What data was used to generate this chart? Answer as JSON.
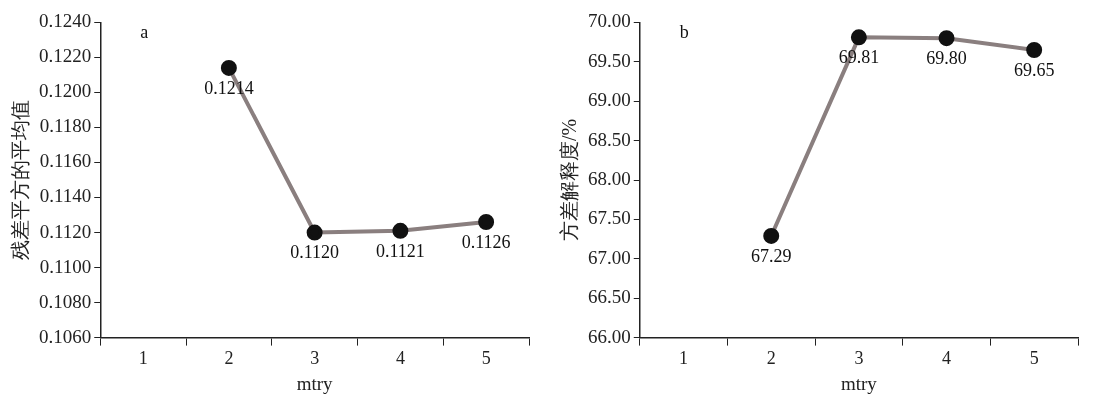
{
  "chart_data": [
    {
      "type": "line",
      "xlabel": "mtry",
      "ylabel": "残差平方的平均值",
      "categories": [
        "1",
        "2",
        "3",
        "4",
        "5"
      ],
      "ylim": [
        0.106,
        0.124
      ],
      "yticks": [
        {
          "value": 0.106,
          "label": "0.1060"
        },
        {
          "value": 0.108,
          "label": "0.1080"
        },
        {
          "value": 0.11,
          "label": "0.1100"
        },
        {
          "value": 0.112,
          "label": "0.1120"
        },
        {
          "value": 0.114,
          "label": "0.1140"
        },
        {
          "value": 0.116,
          "label": "0.1160"
        },
        {
          "value": 0.118,
          "label": "0.1180"
        },
        {
          "value": 0.12,
          "label": "0.1200"
        },
        {
          "value": 0.122,
          "label": "0.1220"
        },
        {
          "value": 0.124,
          "label": "0.1240"
        }
      ],
      "grid": false,
      "legend": false,
      "marker": "circle",
      "line_style": "solid",
      "annotations": [
        "a"
      ],
      "series": [
        {
          "color": "#8a7f7f",
          "values": [
            null,
            0.1214,
            0.112,
            0.1121,
            0.1126
          ],
          "value_labels": [
            null,
            "0.1214",
            "0.1120",
            "0.1121",
            "0.1126"
          ]
        }
      ]
    },
    {
      "type": "line",
      "xlabel": "mtry",
      "ylabel": "方差解释度/%",
      "categories": [
        "1",
        "2",
        "3",
        "4",
        "5"
      ],
      "ylim": [
        66,
        70
      ],
      "yticks": [
        {
          "value": 66,
          "label": "66.00"
        },
        {
          "value": 66.5,
          "label": "66.50"
        },
        {
          "value": 67,
          "label": "67.00"
        },
        {
          "value": 67.5,
          "label": "67.50"
        },
        {
          "value": 68,
          "label": "68.00"
        },
        {
          "value": 68.5,
          "label": "68.50"
        },
        {
          "value": 69,
          "label": "69.00"
        },
        {
          "value": 69.5,
          "label": "69.50"
        },
        {
          "value": 70,
          "label": "70.00"
        }
      ],
      "grid": false,
      "legend": false,
      "marker": "circle",
      "line_style": "solid",
      "annotations": [
        "b"
      ],
      "series": [
        {
          "color": "#8a7f7f",
          "values": [
            null,
            67.29,
            69.81,
            69.8,
            69.65
          ],
          "value_labels": [
            null,
            "67.29",
            "69.81",
            "69.80",
            "69.65"
          ]
        }
      ]
    }
  ]
}
